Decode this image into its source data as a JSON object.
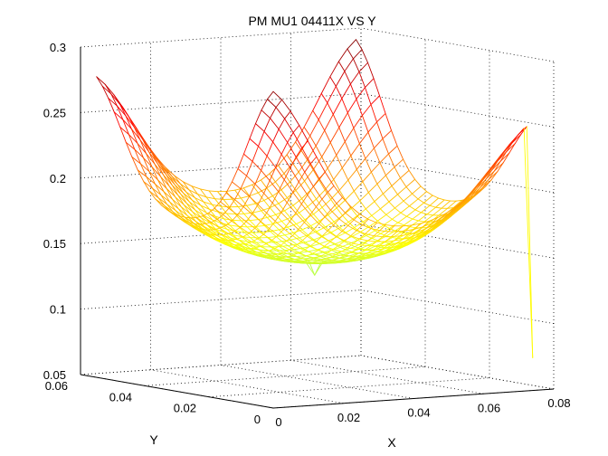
{
  "chart_data": {
    "type": "surface",
    "title": "PM MU1 04411X VS Y",
    "xlabel": "X",
    "ylabel": "Y",
    "zlabel": "",
    "xlim": [
      0,
      0.08
    ],
    "ylim": [
      0,
      0.06
    ],
    "zlim": [
      0.05,
      0.3
    ],
    "x_ticks": [
      "0",
      "0.02",
      "0.04",
      "0.06",
      "0.08"
    ],
    "y_ticks": [
      "0",
      "0.02",
      "0.04",
      "0.06"
    ],
    "z_ticks": [
      "0.05",
      "0.1",
      "0.15",
      "0.2",
      "0.25",
      "0.3"
    ],
    "grid": true,
    "colormap": "jet",
    "surface": {
      "x_range": [
        0,
        0.074
      ],
      "y_range": [
        0,
        0.055
      ],
      "bowl_min": 0.143,
      "bowl_center_x": 0.037,
      "bowl_center_y": 0.027,
      "peaks": [
        {
          "x": 0.0,
          "y": 0.0,
          "z": 0.28
        },
        {
          "x": 0.074,
          "y": 0.055,
          "z": 0.28
        },
        {
          "x": 0.0,
          "y": 0.055,
          "z": 0.265
        },
        {
          "x": 0.074,
          "y": 0.0,
          "z": 0.245
        }
      ],
      "spikes": [
        {
          "x": 0.074,
          "y": 0.0,
          "z": 0.075
        },
        {
          "x": 0.037,
          "y": 0.027,
          "z": 0.133
        }
      ]
    }
  }
}
